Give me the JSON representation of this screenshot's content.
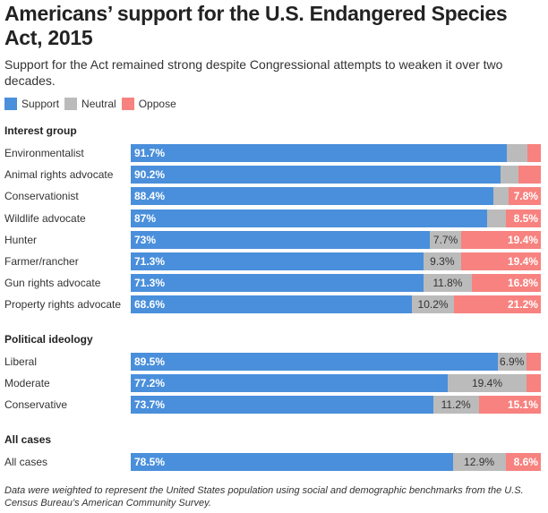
{
  "title": "Americans’ support for the U.S. Endangered Species Act, 2015",
  "subtitle": "Support for the Act remained strong despite Congressional attempts to weaken it over two decades.",
  "note": "Data were weighted to represent the United States population using social and demographic benchmarks from the U.S. Census Bureau’s American Community Survey.",
  "chart_data": {
    "type": "bar",
    "orientation": "horizontal",
    "stacked": true,
    "percent_stacked": true,
    "legend": {
      "placement": "top-left",
      "items": [
        "Support",
        "Neutral",
        "Oppose"
      ]
    },
    "colors": {
      "Support": "#4a8fdb",
      "Neutral": "#bbbbbb",
      "Oppose": "#f7827f"
    },
    "groups": [
      {
        "name": "Interest group",
        "rows": [
          {
            "category": "Environmentalist",
            "support": 91.7,
            "neutral": 5.0,
            "oppose": 3.3,
            "labels": [
              "91.7%",
              "",
              ""
            ]
          },
          {
            "category": "Animal rights advocate",
            "support": 90.2,
            "neutral": 4.3,
            "oppose": 5.5,
            "labels": [
              "90.2%",
              "",
              ""
            ]
          },
          {
            "category": "Conservationist",
            "support": 88.4,
            "neutral": 3.8,
            "oppose": 7.8,
            "labels": [
              "88.4%",
              "",
              "7.8%"
            ]
          },
          {
            "category": "Wildlife advocate",
            "support": 87,
            "neutral": 4.5,
            "oppose": 8.5,
            "labels": [
              "87%",
              "",
              "8.5%"
            ]
          },
          {
            "category": "Hunter",
            "support": 73,
            "neutral": 7.7,
            "oppose": 19.4,
            "labels": [
              "73%",
              "7.7%",
              "19.4%"
            ]
          },
          {
            "category": "Farmer/rancher",
            "support": 71.3,
            "neutral": 9.3,
            "oppose": 19.4,
            "labels": [
              "71.3%",
              "9.3%",
              "19.4%"
            ]
          },
          {
            "category": "Gun rights advocate",
            "support": 71.3,
            "neutral": 11.8,
            "oppose": 16.8,
            "labels": [
              "71.3%",
              "11.8%",
              "16.8%"
            ]
          },
          {
            "category": "Property rights advocate",
            "support": 68.6,
            "neutral": 10.2,
            "oppose": 21.2,
            "labels": [
              "68.6%",
              "10.2%",
              "21.2%"
            ]
          }
        ]
      },
      {
        "name": "Political ideology",
        "rows": [
          {
            "category": "Liberal",
            "support": 89.5,
            "neutral": 6.9,
            "oppose": 3.6,
            "labels": [
              "89.5%",
              "6.9%",
              ""
            ]
          },
          {
            "category": "Moderate",
            "support": 77.2,
            "neutral": 19.4,
            "oppose": 3.4,
            "labels": [
              "77.2%",
              "19.4%",
              ""
            ]
          },
          {
            "category": "Conservative",
            "support": 73.7,
            "neutral": 11.2,
            "oppose": 15.1,
            "labels": [
              "73.7%",
              "11.2%",
              "15.1%"
            ]
          }
        ]
      },
      {
        "name": "All cases",
        "rows": [
          {
            "category": "All cases",
            "support": 78.5,
            "neutral": 12.9,
            "oppose": 8.6,
            "labels": [
              "78.5%",
              "12.9%",
              "8.6%"
            ]
          }
        ]
      }
    ],
    "xlim": [
      0,
      100
    ]
  }
}
